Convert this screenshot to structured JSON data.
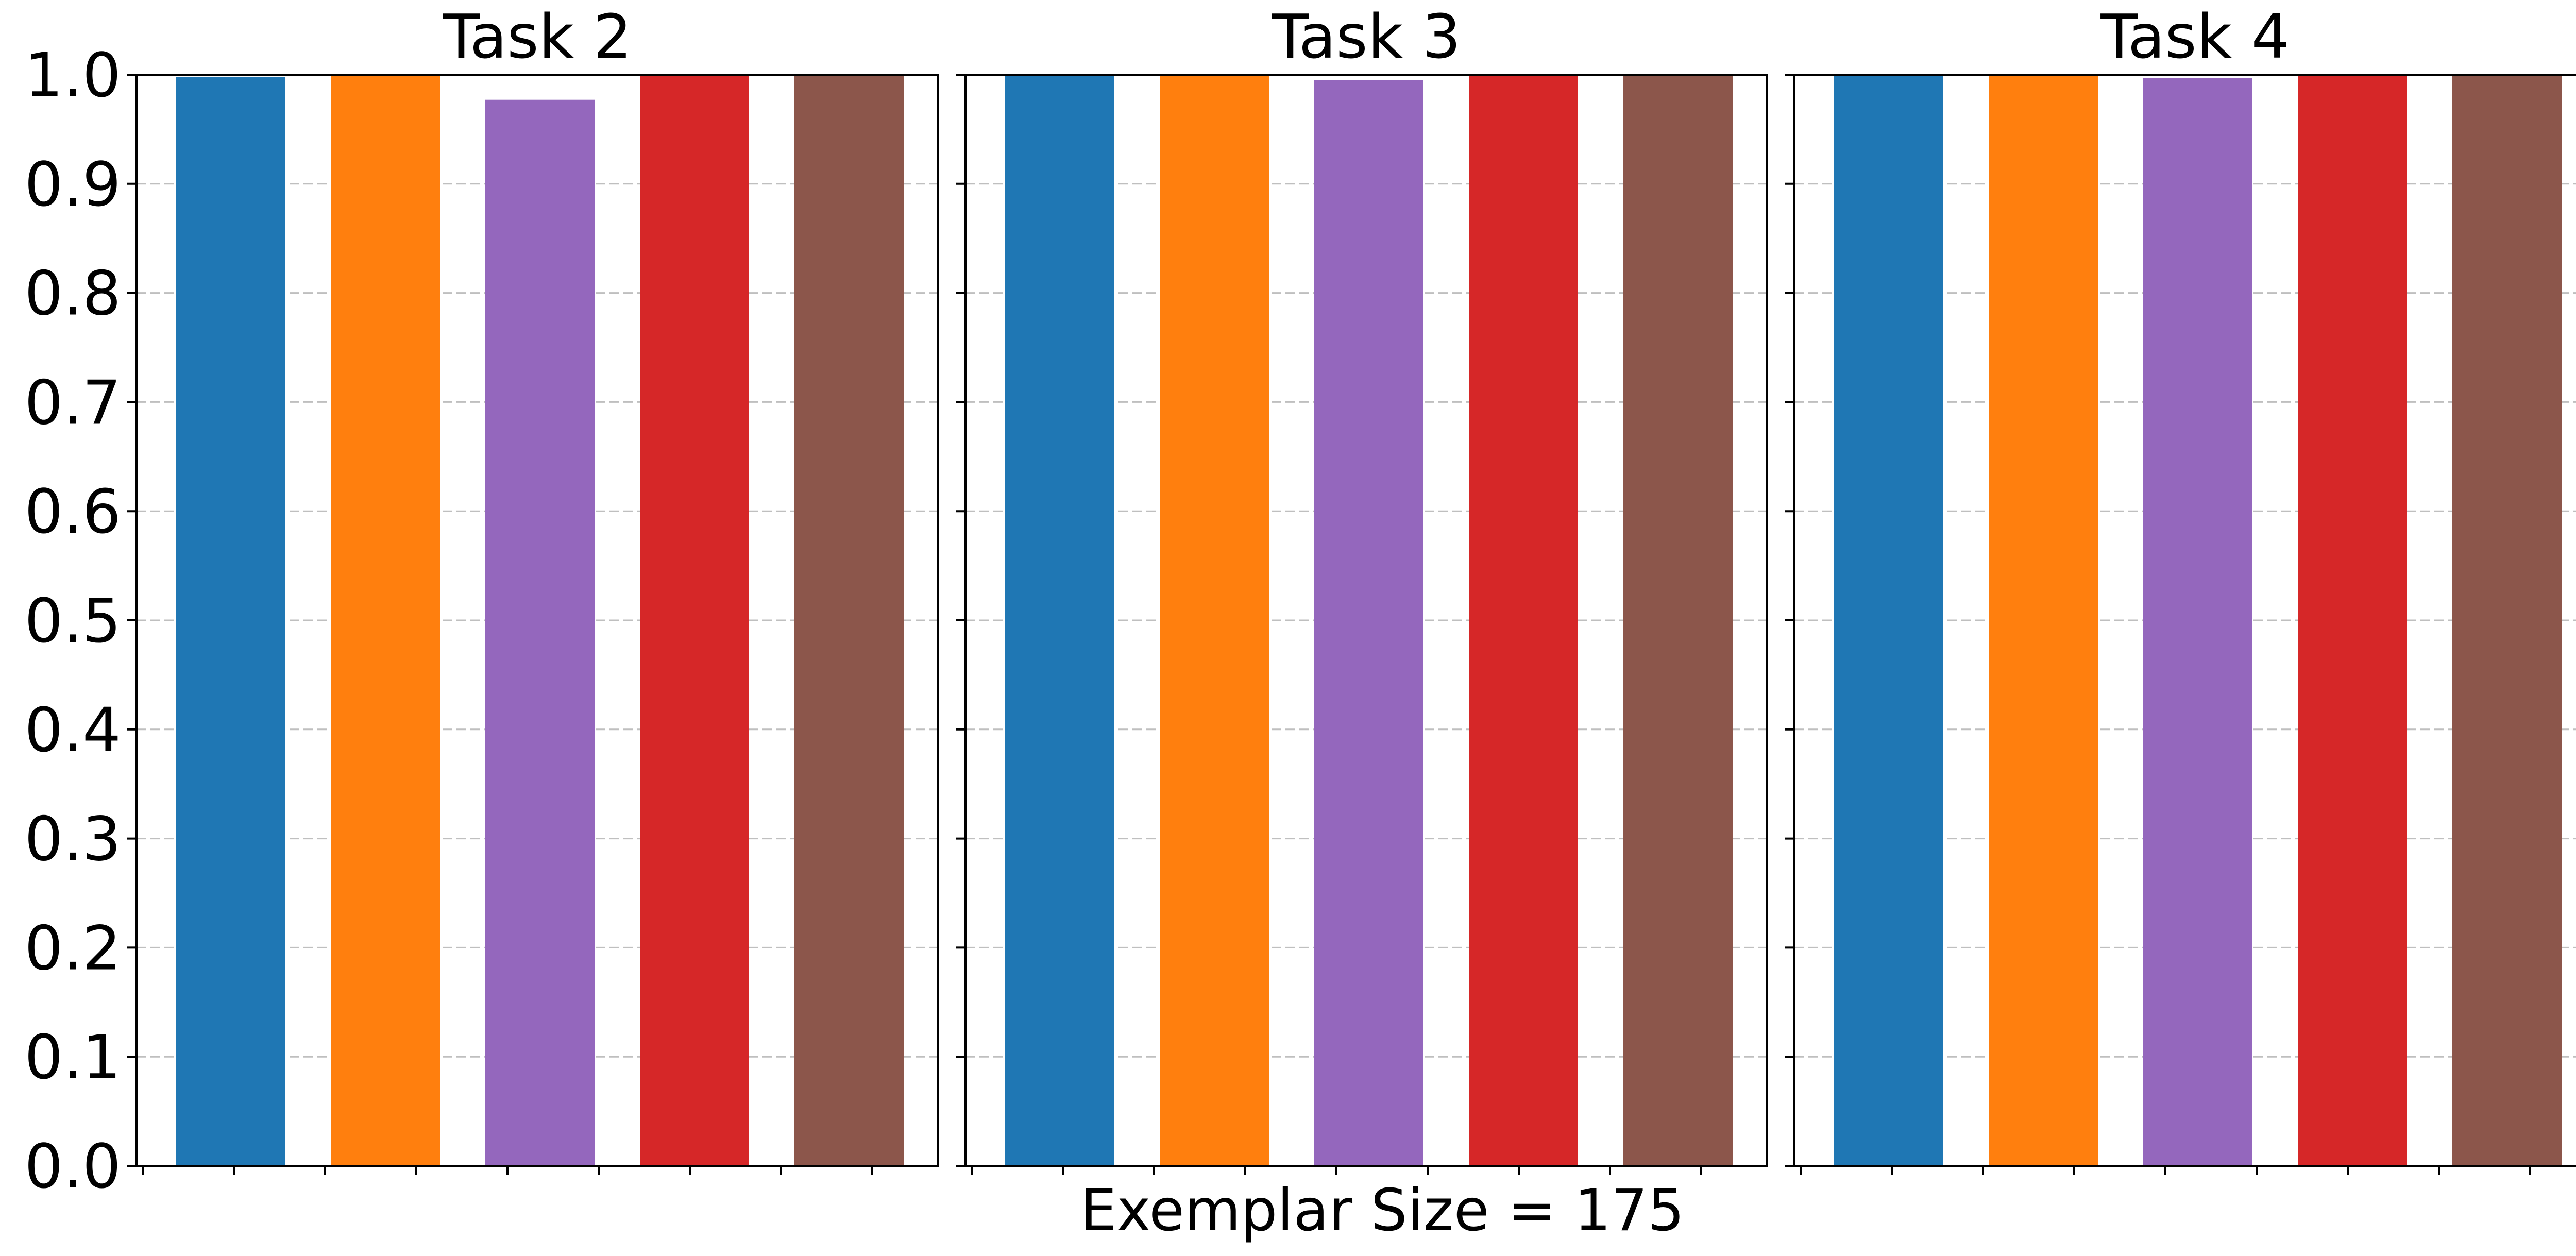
{
  "chart_data": {
    "type": "bar",
    "xlabel": "Exemplar Size = 175",
    "ylim": [
      0,
      1.0
    ],
    "yticks": [
      "0.0",
      "0.1",
      "0.2",
      "0.3",
      "0.4",
      "0.5",
      "0.6",
      "0.7",
      "0.8",
      "0.9",
      "1.0"
    ],
    "grid": "horizontal dashed",
    "legend": "none",
    "colors": [
      "#1f77b4",
      "#ff7f0e",
      "#9467bd",
      "#d62728",
      "#8c564b"
    ],
    "panels": [
      {
        "title": "Task 2",
        "values": [
          0.998,
          0.999,
          0.977,
          1.0,
          1.0
        ]
      },
      {
        "title": "Task 3",
        "values": [
          1.0,
          1.0,
          0.995,
          1.0,
          1.0
        ]
      },
      {
        "title": "Task 4",
        "values": [
          1.0,
          1.0,
          0.997,
          1.0,
          1.0
        ]
      }
    ]
  }
}
